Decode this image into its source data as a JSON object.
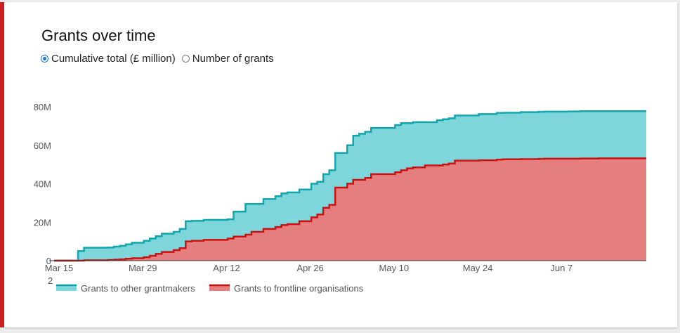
{
  "widget": {
    "title": "Grants over time",
    "radio_options": [
      {
        "label": "Cumulative total (£ million)",
        "selected": true
      },
      {
        "label": "Number of grants",
        "selected": false
      }
    ],
    "accent_color": "#cc1f1f",
    "stray_label": "2"
  },
  "chart_data": {
    "type": "area",
    "stacked": true,
    "step": true,
    "title": "Grants over time",
    "xlabel": "",
    "ylabel": "",
    "x_ticks": [
      "Mar 15",
      "Mar 29",
      "Apr 12",
      "Apr 26",
      "May 10",
      "May 24",
      "Jun 7"
    ],
    "x_tick_dates": [
      "2020-03-15",
      "2020-03-29",
      "2020-04-12",
      "2020-04-26",
      "2020-05-10",
      "2020-05-24",
      "2020-06-07"
    ],
    "y_ticks": [
      "0",
      "20M",
      "40M",
      "60M",
      "80M"
    ],
    "y_tick_values": [
      0,
      20,
      40,
      60,
      80
    ],
    "ylim": [
      0,
      80
    ],
    "xlim": [
      "2020-03-15",
      "2020-06-22"
    ],
    "grid": false,
    "legend_position": "bottom-left",
    "x": [
      "2020-03-15",
      "2020-03-19",
      "2020-03-20",
      "2020-03-24",
      "2020-03-25",
      "2020-03-26",
      "2020-03-27",
      "2020-03-28",
      "2020-03-30",
      "2020-03-31",
      "2020-04-01",
      "2020-04-02",
      "2020-04-04",
      "2020-04-05",
      "2020-04-06",
      "2020-04-07",
      "2020-04-09",
      "2020-04-13",
      "2020-04-14",
      "2020-04-16",
      "2020-04-17",
      "2020-04-19",
      "2020-04-21",
      "2020-04-22",
      "2020-04-23",
      "2020-04-25",
      "2020-04-27",
      "2020-04-28",
      "2020-04-29",
      "2020-04-30",
      "2020-05-01",
      "2020-05-03",
      "2020-05-04",
      "2020-05-05",
      "2020-05-06",
      "2020-05-07",
      "2020-05-11",
      "2020-05-12",
      "2020-05-13",
      "2020-05-14",
      "2020-05-16",
      "2020-05-18",
      "2020-05-19",
      "2020-05-20",
      "2020-05-21",
      "2020-05-25",
      "2020-05-28",
      "2020-05-29",
      "2020-06-01",
      "2020-06-04",
      "2020-06-05",
      "2020-06-09",
      "2020-06-11",
      "2020-06-14",
      "2020-06-22"
    ],
    "series": [
      {
        "name": "Grants to frontline organisations",
        "color": "#e57f7f",
        "line_color": "#cc1111",
        "values": [
          0,
          0,
          0.2,
          0.3,
          0.5,
          0.7,
          1.0,
          1.3,
          1.8,
          2.5,
          3.5,
          4.5,
          5.5,
          6.5,
          10.0,
          10.3,
          10.8,
          11.5,
          12.5,
          13.5,
          15.0,
          16.5,
          17.5,
          18.5,
          19.0,
          20.5,
          22.5,
          24.0,
          27.5,
          29.0,
          38.0,
          40.0,
          42.0,
          42.0,
          43.0,
          45.0,
          46.0,
          47.0,
          48.0,
          48.5,
          49.5,
          49.5,
          50.0,
          50.5,
          52.0,
          52.2,
          52.5,
          52.7,
          52.8,
          52.9,
          53.0,
          53.0,
          53.1,
          53.2,
          53.2
        ]
      },
      {
        "name": "Grants to other grantmakers",
        "color": "#7fd6da",
        "line_color": "#10a6ae",
        "values": [
          0,
          5.0,
          6.5,
          6.5,
          6.8,
          7.0,
          7.5,
          8.0,
          8.5,
          9.0,
          9.2,
          9.5,
          9.5,
          10.0,
          10.5,
          10.4,
          10.4,
          10.0,
          13.0,
          16.0,
          14.5,
          15.5,
          16.0,
          16.5,
          16.5,
          16.5,
          17.5,
          17.0,
          17.5,
          18.0,
          18.0,
          20.0,
          23.0,
          24.0,
          24.0,
          24.0,
          24.5,
          24.5,
          23.5,
          23.5,
          22.5,
          23.5,
          23.5,
          23.5,
          23.5,
          24.0,
          24.3,
          24.2,
          24.4,
          24.5,
          24.5,
          24.6,
          24.6,
          24.5,
          24.5
        ]
      }
    ]
  }
}
